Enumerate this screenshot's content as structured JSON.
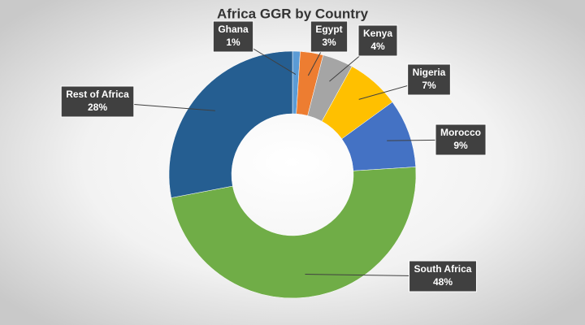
{
  "chart_data": {
    "type": "doughnut",
    "title": "Africa GGR by Country",
    "categories": [
      "Ghana",
      "Egypt",
      "Kenya",
      "Nigeria",
      "Morocco",
      "South Africa",
      "Rest of Africa"
    ],
    "values": [
      1,
      3,
      4,
      7,
      9,
      48,
      28
    ],
    "value_labels": [
      "1%",
      "3%",
      "4%",
      "7%",
      "9%",
      "48%",
      "28%"
    ],
    "colors": [
      "#5b9bd5",
      "#ed7d31",
      "#a5a5a5",
      "#ffc000",
      "#4472c4",
      "#70ad47",
      "#255e91"
    ]
  }
}
